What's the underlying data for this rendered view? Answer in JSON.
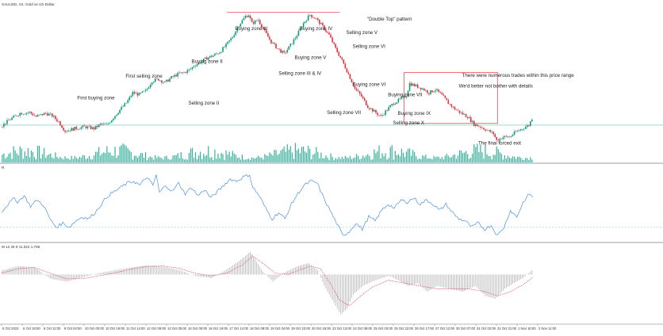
{
  "header": {
    "symbol_label": "XAUUSD, H1:  Gold vs US Dollar",
    "rsi_label": "R",
    "macd_label": "M 12 26 9   11.022  1.766"
  },
  "colors": {
    "bull": "#0a9b7d",
    "bear": "#e0303d",
    "volume": "#14a18a",
    "rsi_line": "#4a90e2",
    "macd_hist": "#9a9a9a",
    "macd_signal": "#e04a58",
    "level_line": "#7fcfc8",
    "box": "#e8505b",
    "separator": "#9aa0a6"
  },
  "chart_data": [
    {
      "type": "candlestick",
      "title": "\"Double Top\" pattern",
      "close_path_points": [
        [
          0,
          1918
        ],
        [
          6,
          1927
        ],
        [
          12,
          1934
        ],
        [
          18,
          1935
        ],
        [
          22,
          1930
        ],
        [
          28,
          1934
        ],
        [
          32,
          1931
        ],
        [
          36,
          1924
        ],
        [
          40,
          1913
        ],
        [
          46,
          1916
        ],
        [
          52,
          1918
        ],
        [
          58,
          1916
        ],
        [
          62,
          1921
        ],
        [
          66,
          1920
        ],
        [
          70,
          1929
        ],
        [
          74,
          1938
        ],
        [
          78,
          1946
        ],
        [
          82,
          1958
        ],
        [
          86,
          1956
        ],
        [
          90,
          1960
        ],
        [
          94,
          1972
        ],
        [
          98,
          1974
        ],
        [
          102,
          1970
        ],
        [
          106,
          1976
        ],
        [
          110,
          1980
        ],
        [
          114,
          1982
        ],
        [
          118,
          1986
        ],
        [
          120,
          1990
        ],
        [
          124,
          1994
        ],
        [
          128,
          1999
        ],
        [
          132,
          2002
        ],
        [
          136,
          2006
        ],
        [
          140,
          2014
        ],
        [
          144,
          2024
        ],
        [
          148,
          2038
        ],
        [
          152,
          2048
        ],
        [
          154,
          2050
        ],
        [
          156,
          2040
        ],
        [
          160,
          2044
        ],
        [
          164,
          2030
        ],
        [
          168,
          2018
        ],
        [
          172,
          2010
        ],
        [
          176,
          2004
        ],
        [
          180,
          2014
        ],
        [
          184,
          2026
        ],
        [
          188,
          2040
        ],
        [
          192,
          2050
        ],
        [
          196,
          2045
        ],
        [
          200,
          2036
        ],
        [
          204,
          2026
        ],
        [
          208,
          2010
        ],
        [
          212,
          1996
        ],
        [
          216,
          1980
        ],
        [
          220,
          1963
        ],
        [
          224,
          1954
        ],
        [
          228,
          1942
        ],
        [
          232,
          1936
        ],
        [
          236,
          1930
        ],
        [
          240,
          1938
        ],
        [
          244,
          1946
        ],
        [
          248,
          1950
        ],
        [
          252,
          1955
        ],
        [
          254,
          1969
        ],
        [
          258,
          1966
        ],
        [
          262,
          1963
        ],
        [
          266,
          1958
        ],
        [
          270,
          1962
        ],
        [
          274,
          1955
        ],
        [
          278,
          1946
        ],
        [
          282,
          1939
        ],
        [
          286,
          1934
        ],
        [
          290,
          1930
        ],
        [
          294,
          1921
        ],
        [
          298,
          1918
        ],
        [
          302,
          1914
        ],
        [
          306,
          1910
        ],
        [
          308,
          1902
        ],
        [
          312,
          1906
        ],
        [
          316,
          1906
        ],
        [
          320,
          1912
        ],
        [
          324,
          1916
        ],
        [
          328,
          1920
        ],
        [
          330,
          1928
        ]
      ],
      "candle_count": 330,
      "ylim": [
        1890,
        2058
      ],
      "horizontal_level": 1920,
      "top_line_level": 2053,
      "volume_range": [
        0,
        100
      ],
      "annotations": [
        {
          "text": "First buying zone",
          "x": 47,
          "y": 1950
        },
        {
          "text": "First selling zone",
          "x": 77,
          "y": 1976
        },
        {
          "text": "Buying zone II",
          "x": 118,
          "y": 1993
        },
        {
          "text": "Selling zone II",
          "x": 116,
          "y": 1944
        },
        {
          "text": "Buying zone III",
          "x": 145,
          "y": 2032
        },
        {
          "text": "Buying zone IV",
          "x": 185,
          "y": 2032
        },
        {
          "text": "Selling zone III & IV",
          "x": 172,
          "y": 1979
        },
        {
          "text": "Buying zone V",
          "x": 182,
          "y": 1998
        },
        {
          "text": "\"Double Top\" pattern",
          "x": 227,
          "y": 2043
        },
        {
          "text": "Selling zone V",
          "x": 214,
          "y": 2027
        },
        {
          "text": "Selling zone VI",
          "x": 218,
          "y": 2011
        },
        {
          "text": "Buying zone VI",
          "x": 218,
          "y": 1966
        },
        {
          "text": "Buying zone VII",
          "x": 240,
          "y": 1954
        },
        {
          "text": "Selling zone VII",
          "x": 202,
          "y": 1933
        },
        {
          "text": "Buying zone IX",
          "x": 246,
          "y": 1932
        },
        {
          "text": "Selling zone X",
          "x": 243,
          "y": 1921
        },
        {
          "text": "There were numerous trades within this price range",
          "x": 286,
          "y": 1977
        },
        {
          "text": "We'd better not bother with details",
          "x": 284,
          "y": 1964
        },
        {
          "text": "The final forced exit",
          "x": 296,
          "y": 1897
        }
      ],
      "box": {
        "x0": 250,
        "x1": 308,
        "y0": 1922,
        "y1": 1982
      }
    },
    {
      "type": "line",
      "name": "",
      "ylim": [
        20,
        85
      ],
      "level": 30,
      "points": [
        [
          0,
          45
        ],
        [
          4,
          52
        ],
        [
          8,
          58
        ],
        [
          10,
          54
        ],
        [
          14,
          60
        ],
        [
          18,
          50
        ],
        [
          22,
          56
        ],
        [
          26,
          51
        ],
        [
          30,
          38
        ],
        [
          34,
          30
        ],
        [
          38,
          34
        ],
        [
          42,
          30
        ],
        [
          46,
          36
        ],
        [
          50,
          40
        ],
        [
          54,
          38
        ],
        [
          58,
          44
        ],
        [
          62,
          52
        ],
        [
          66,
          60
        ],
        [
          70,
          64
        ],
        [
          74,
          68
        ],
        [
          78,
          72
        ],
        [
          82,
          74
        ],
        [
          86,
          70
        ],
        [
          90,
          78
        ],
        [
          94,
          70
        ],
        [
          96,
          80
        ],
        [
          98,
          63
        ],
        [
          102,
          70
        ],
        [
          106,
          64
        ],
        [
          110,
          72
        ],
        [
          114,
          62
        ],
        [
          118,
          68
        ],
        [
          122,
          60
        ],
        [
          126,
          66
        ],
        [
          130,
          58
        ],
        [
          134,
          64
        ],
        [
          138,
          70
        ],
        [
          142,
          76
        ],
        [
          146,
          74
        ],
        [
          150,
          78
        ],
        [
          154,
          80
        ],
        [
          156,
          68
        ],
        [
          160,
          60
        ],
        [
          164,
          48
        ],
        [
          168,
          38
        ],
        [
          172,
          44
        ],
        [
          176,
          38
        ],
        [
          180,
          52
        ],
        [
          184,
          62
        ],
        [
          188,
          70
        ],
        [
          192,
          74
        ],
        [
          196,
          72
        ],
        [
          200,
          58
        ],
        [
          204,
          46
        ],
        [
          208,
          34
        ],
        [
          212,
          22
        ],
        [
          216,
          26
        ],
        [
          220,
          34
        ],
        [
          224,
          28
        ],
        [
          228,
          40
        ],
        [
          232,
          36
        ],
        [
          236,
          46
        ],
        [
          240,
          52
        ],
        [
          244,
          48
        ],
        [
          248,
          56
        ],
        [
          252,
          54
        ],
        [
          256,
          58
        ],
        [
          260,
          52
        ],
        [
          264,
          56
        ],
        [
          268,
          52
        ],
        [
          272,
          46
        ],
        [
          276,
          52
        ],
        [
          280,
          44
        ],
        [
          284,
          38
        ],
        [
          288,
          36
        ],
        [
          292,
          30
        ],
        [
          296,
          34
        ],
        [
          300,
          28
        ],
        [
          304,
          32
        ],
        [
          308,
          22
        ],
        [
          312,
          30
        ],
        [
          316,
          46
        ],
        [
          320,
          40
        ],
        [
          324,
          54
        ],
        [
          328,
          62
        ],
        [
          330,
          58
        ]
      ]
    },
    {
      "type": "bar",
      "name": "",
      "ylim": [
        -16,
        9
      ],
      "histogram_points": [
        [
          0,
          1.5
        ],
        [
          10,
          3
        ],
        [
          20,
          2.5
        ],
        [
          30,
          -1.5
        ],
        [
          40,
          -2.5
        ],
        [
          50,
          -1
        ],
        [
          60,
          0.5
        ],
        [
          70,
          1.5
        ],
        [
          80,
          2.5
        ],
        [
          90,
          3.2
        ],
        [
          100,
          2.8
        ],
        [
          110,
          1.5
        ],
        [
          120,
          -0.5
        ],
        [
          130,
          -1.2
        ],
        [
          140,
          2
        ],
        [
          150,
          6
        ],
        [
          154,
          8
        ],
        [
          158,
          4.5
        ],
        [
          162,
          1
        ],
        [
          168,
          -2.5
        ],
        [
          176,
          1
        ],
        [
          184,
          3
        ],
        [
          190,
          4
        ],
        [
          196,
          1.5
        ],
        [
          200,
          -4
        ],
        [
          206,
          -10
        ],
        [
          210,
          -14
        ],
        [
          214,
          -12
        ],
        [
          218,
          -7
        ],
        [
          224,
          -4
        ],
        [
          232,
          -2
        ],
        [
          240,
          -0.5
        ],
        [
          246,
          -2
        ],
        [
          252,
          -4
        ],
        [
          258,
          -3
        ],
        [
          264,
          -6
        ],
        [
          270,
          -4
        ],
        [
          278,
          -5
        ],
        [
          286,
          -6
        ],
        [
          294,
          -4
        ],
        [
          300,
          -7.5
        ],
        [
          306,
          -8.5
        ],
        [
          312,
          -5
        ],
        [
          318,
          -3
        ],
        [
          324,
          -1
        ],
        [
          330,
          2
        ]
      ],
      "signal_points": [
        [
          0,
          0.5
        ],
        [
          10,
          2
        ],
        [
          20,
          2.5
        ],
        [
          30,
          0.5
        ],
        [
          40,
          -1.5
        ],
        [
          50,
          -1.5
        ],
        [
          60,
          -0.5
        ],
        [
          70,
          0.5
        ],
        [
          80,
          1.8
        ],
        [
          90,
          2.8
        ],
        [
          100,
          3
        ],
        [
          110,
          2.2
        ],
        [
          120,
          0.5
        ],
        [
          130,
          -0.5
        ],
        [
          140,
          0.5
        ],
        [
          150,
          3.5
        ],
        [
          156,
          6.5
        ],
        [
          162,
          4
        ],
        [
          170,
          0.5
        ],
        [
          178,
          0
        ],
        [
          186,
          1.8
        ],
        [
          192,
          3
        ],
        [
          198,
          2
        ],
        [
          204,
          -3
        ],
        [
          210,
          -9
        ],
        [
          216,
          -11
        ],
        [
          222,
          -8
        ],
        [
          230,
          -4.5
        ],
        [
          240,
          -2
        ],
        [
          250,
          -3
        ],
        [
          260,
          -4
        ],
        [
          270,
          -5
        ],
        [
          280,
          -5
        ],
        [
          290,
          -5
        ],
        [
          300,
          -6
        ],
        [
          308,
          -7.5
        ],
        [
          316,
          -6
        ],
        [
          324,
          -3.5
        ],
        [
          330,
          -1
        ]
      ]
    }
  ],
  "x_axis": {
    "labels": [
      "5 Oct 2023",
      "5 Oct 16:00",
      "6 Oct 11:00",
      "9 Oct 04:00",
      "10 Oct 00:00",
      "10 Oct 19:00",
      "11 Oct 14:00",
      "12 Oct 09:00",
      "13 Oct 05:00",
      "16 Oct 00:00",
      "16 Oct 19:00",
      "17 Oct 14:00",
      "18 Oct 09:00",
      "19 Oct 04:00",
      "19 Oct 23:00",
      "20 Oct 18:00",
      "23 Oct 13:00",
      "24 Oct 08:00",
      "25 Oct 03:00",
      "25 Oct 22:00",
      "26 Oct 17:00",
      "27 Oct 12:00",
      "30 Oct 07:00",
      "31 Oct 02:00",
      "31 Oct 21:00",
      "1 Nov 16:00",
      "2 Nov 11:00"
    ]
  }
}
